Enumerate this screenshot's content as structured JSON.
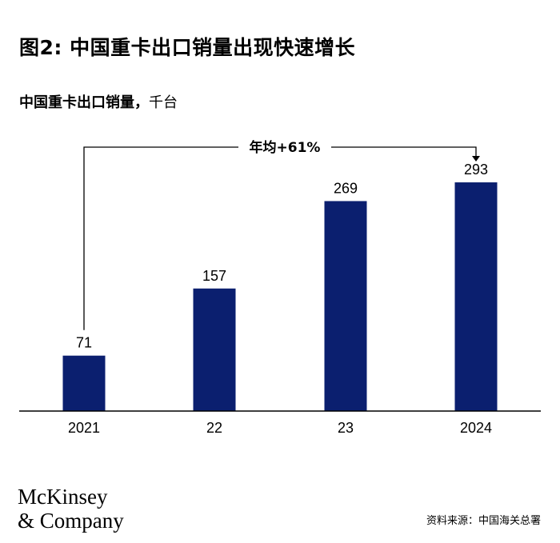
{
  "title": "图2: 中国重卡出口销量出现快速增长",
  "subtitle": {
    "metric": "中国重卡出口销量，",
    "unit": "千台"
  },
  "chart_data": {
    "type": "bar",
    "categories": [
      "2021",
      "22",
      "23",
      "2024"
    ],
    "values": [
      71,
      157,
      269,
      293
    ],
    "bar_color": "#0b1f6f",
    "ylim": [
      0,
      320
    ],
    "grid": false,
    "annotation": {
      "text": "年均+61%",
      "from": "2021",
      "to": "2024"
    }
  },
  "logo": {
    "line1": "McKinsey",
    "line2": "& Company"
  },
  "source": "资料来源：中国海关总署"
}
